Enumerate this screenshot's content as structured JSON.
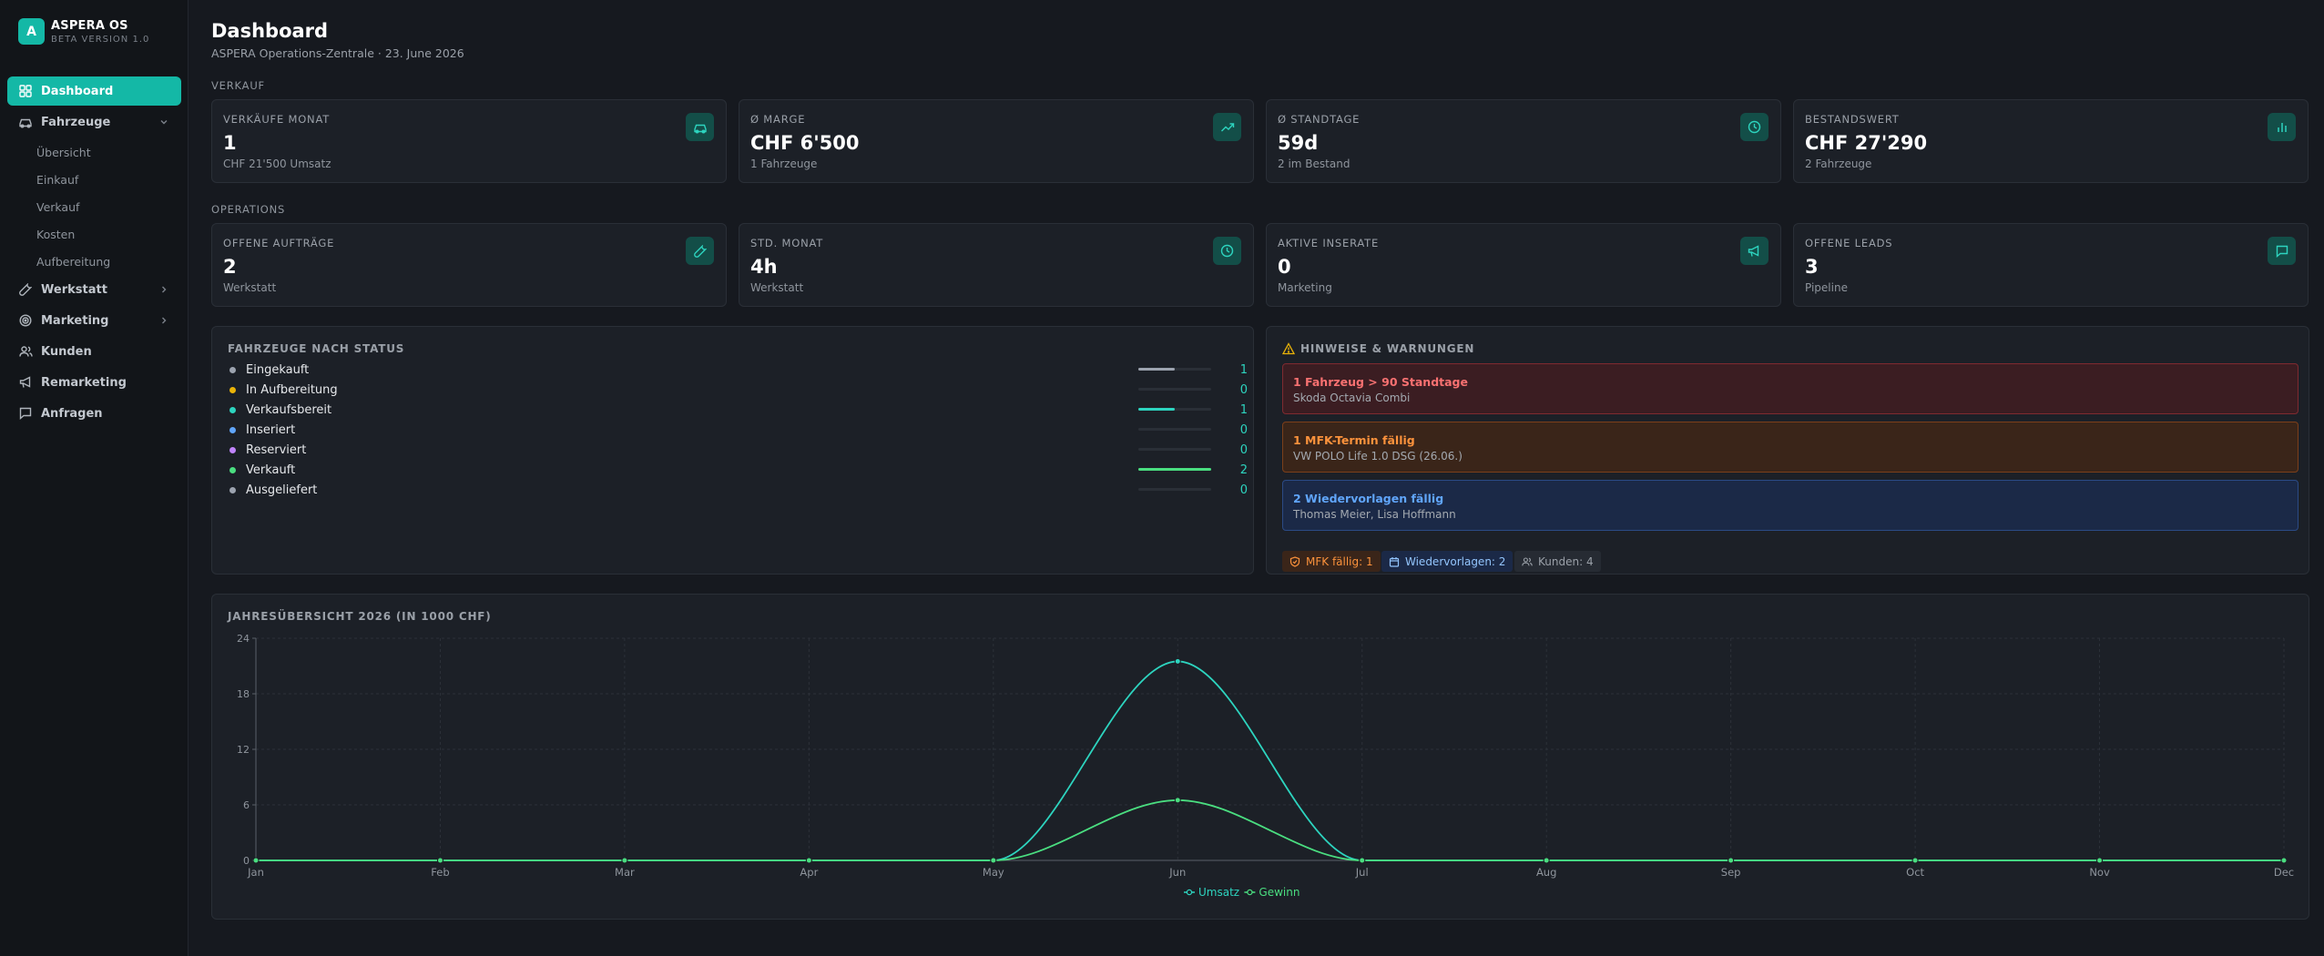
{
  "brand": {
    "logo_letter": "A",
    "name": "ASPERA OS",
    "version": "BETA VERSION 1.0"
  },
  "sidebar": {
    "items": [
      {
        "label": "Dashboard",
        "icon": "dashboard-icon",
        "active": true
      },
      {
        "label": "Fahrzeuge",
        "icon": "car-icon",
        "expanded": true,
        "children": [
          "Übersicht",
          "Einkauf",
          "Verkauf",
          "Kosten",
          "Aufbereitung"
        ]
      },
      {
        "label": "Werkstatt",
        "icon": "wrench-icon"
      },
      {
        "label": "Marketing",
        "icon": "target-icon"
      },
      {
        "label": "Kunden",
        "icon": "users-icon"
      },
      {
        "label": "Remarketing",
        "icon": "megaphone-icon"
      },
      {
        "label": "Anfragen",
        "icon": "message-icon"
      }
    ]
  },
  "header": {
    "title": "Dashboard",
    "subtitle": "ASPERA Operations-Zentrale · 23. June 2026"
  },
  "sections": {
    "sales": "VERKAUF",
    "operations": "OPERATIONS"
  },
  "kpis_sales": [
    {
      "label": "VERKÄUFE MONAT",
      "value": "1",
      "sub": "CHF 21'500 Umsatz",
      "icon": "car-icon"
    },
    {
      "label": "Ø MARGE",
      "value": "CHF 6'500",
      "sub": "1 Fahrzeuge",
      "icon": "trending-up-icon"
    },
    {
      "label": "Ø STANDTAGE",
      "value": "59d",
      "sub": "2 im Bestand",
      "icon": "clock-icon"
    },
    {
      "label": "BESTANDSWERT",
      "value": "CHF 27'290",
      "sub": "2 Fahrzeuge",
      "icon": "bar-chart-icon"
    }
  ],
  "kpis_ops": [
    {
      "label": "OFFENE AUFTRÄGE",
      "value": "2",
      "sub": "Werkstatt",
      "icon": "wrench-icon"
    },
    {
      "label": "STD. MONAT",
      "value": "4h",
      "sub": "Werkstatt",
      "icon": "clock-icon"
    },
    {
      "label": "AKTIVE INSERATE",
      "value": "0",
      "sub": "Marketing",
      "icon": "megaphone-icon"
    },
    {
      "label": "OFFENE LEADS",
      "value": "3",
      "sub": "Pipeline",
      "icon": "message-icon"
    }
  ],
  "status_panel": {
    "title": "FAHRZEUGE NACH STATUS",
    "max": 2,
    "rows": [
      {
        "name": "Eingekauft",
        "count": 1,
        "dot": "#9ca3af",
        "bar": "#9ca3af"
      },
      {
        "name": "In Aufbereitung",
        "count": 0,
        "dot": "#eab308",
        "bar": "#eab308"
      },
      {
        "name": "Verkaufsbereit",
        "count": 1,
        "dot": "#2dd4bf",
        "bar": "#2dd4bf"
      },
      {
        "name": "Inseriert",
        "count": 0,
        "dot": "#60a5fa",
        "bar": "#60a5fa"
      },
      {
        "name": "Reserviert",
        "count": 0,
        "dot": "#c084fc",
        "bar": "#c084fc"
      },
      {
        "name": "Verkauft",
        "count": 2,
        "dot": "#4ade80",
        "bar": "#4ade80"
      },
      {
        "name": "Ausgeliefert",
        "count": 0,
        "dot": "#9ca3af",
        "bar": "#9ca3af"
      }
    ]
  },
  "alerts_panel": {
    "title": "HINWEISE & WARNUNGEN",
    "alerts": [
      {
        "title": "1 Fahrzeug > 90 Standtage",
        "sub": "Skoda Octavia Combi",
        "kind": "danger"
      },
      {
        "title": "1 MFK-Termin fällig",
        "sub": "VW POLO Life 1.0 DSG (26.06.)",
        "kind": "warning"
      },
      {
        "title": "2 Wiedervorlagen fällig",
        "sub": "Thomas Meier, Lisa Hoffmann",
        "kind": "info"
      }
    ],
    "chips": [
      {
        "label": "MFK fällig: 1",
        "icon": "shield-icon",
        "kind": "warning"
      },
      {
        "label": "Wiedervorlagen: 2",
        "icon": "calendar-icon",
        "kind": "info"
      },
      {
        "label": "Kunden: 4",
        "icon": "users-icon",
        "kind": "neutral"
      }
    ]
  },
  "colors": {
    "accent": "#14b8a6",
    "revenue": "#2dd4bf",
    "profit": "#4ade80"
  },
  "chart_data": {
    "type": "line",
    "title": "JAHRESÜBERSICHT 2026 (IN 1000 CHF)",
    "categories": [
      "Jan",
      "Feb",
      "Mar",
      "Apr",
      "May",
      "Jun",
      "Jul",
      "Aug",
      "Sep",
      "Oct",
      "Nov",
      "Dec"
    ],
    "series": [
      {
        "name": "Umsatz",
        "values": [
          0,
          0,
          0,
          0,
          0,
          21.5,
          0,
          0,
          0,
          0,
          0,
          0
        ],
        "color": "#2dd4bf"
      },
      {
        "name": "Gewinn",
        "values": [
          0,
          0,
          0,
          0,
          0,
          6.5,
          0,
          0,
          0,
          0,
          0,
          0
        ],
        "color": "#4ade80"
      }
    ],
    "yticks": [
      0,
      6,
      12,
      18,
      24
    ],
    "ylim": [
      0,
      24
    ],
    "grid": true,
    "legend": "bottom-center"
  }
}
